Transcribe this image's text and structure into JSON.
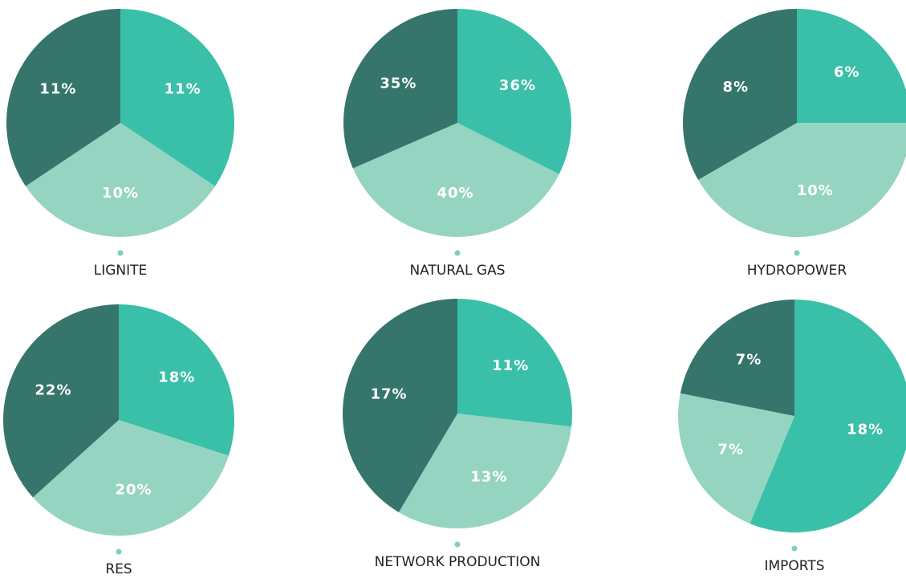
{
  "chart_data": [
    {
      "type": "pie",
      "title": "LIGNITE",
      "values": [
        11,
        10,
        11
      ],
      "value_labels": [
        "11%",
        "10%",
        "11%"
      ],
      "colors": [
        "#3abfa8",
        "#96d4c2",
        "#35756b"
      ]
    },
    {
      "type": "pie",
      "title": "NATURAL GAS",
      "values": [
        36,
        40,
        35
      ],
      "value_labels": [
        "36%",
        "40%",
        "35%"
      ],
      "colors": [
        "#3abfa8",
        "#96d4c2",
        "#35756b"
      ]
    },
    {
      "type": "pie",
      "title": "HYDROPOWER",
      "values": [
        6,
        10,
        8
      ],
      "value_labels": [
        "6%",
        "10%",
        "8%"
      ],
      "colors": [
        "#3abfa8",
        "#96d4c2",
        "#35756b"
      ]
    },
    {
      "type": "pie",
      "title": "RES",
      "values": [
        18,
        20,
        22
      ],
      "value_labels": [
        "18%",
        "20%",
        "22%"
      ],
      "colors": [
        "#3abfa8",
        "#96d4c2",
        "#35756b"
      ]
    },
    {
      "type": "pie",
      "title": "NETWORK PRODUCTION",
      "values": [
        11,
        13,
        17
      ],
      "value_labels": [
        "11%",
        "13%",
        "17%"
      ],
      "colors": [
        "#3abfa8",
        "#96d4c2",
        "#35756b"
      ]
    },
    {
      "type": "pie",
      "title": "IMPORTS",
      "values": [
        18,
        7,
        7
      ],
      "value_labels": [
        "18%",
        "7%",
        "7%"
      ],
      "colors": [
        "#3abfa8",
        "#96d4c2",
        "#35756b"
      ]
    }
  ]
}
